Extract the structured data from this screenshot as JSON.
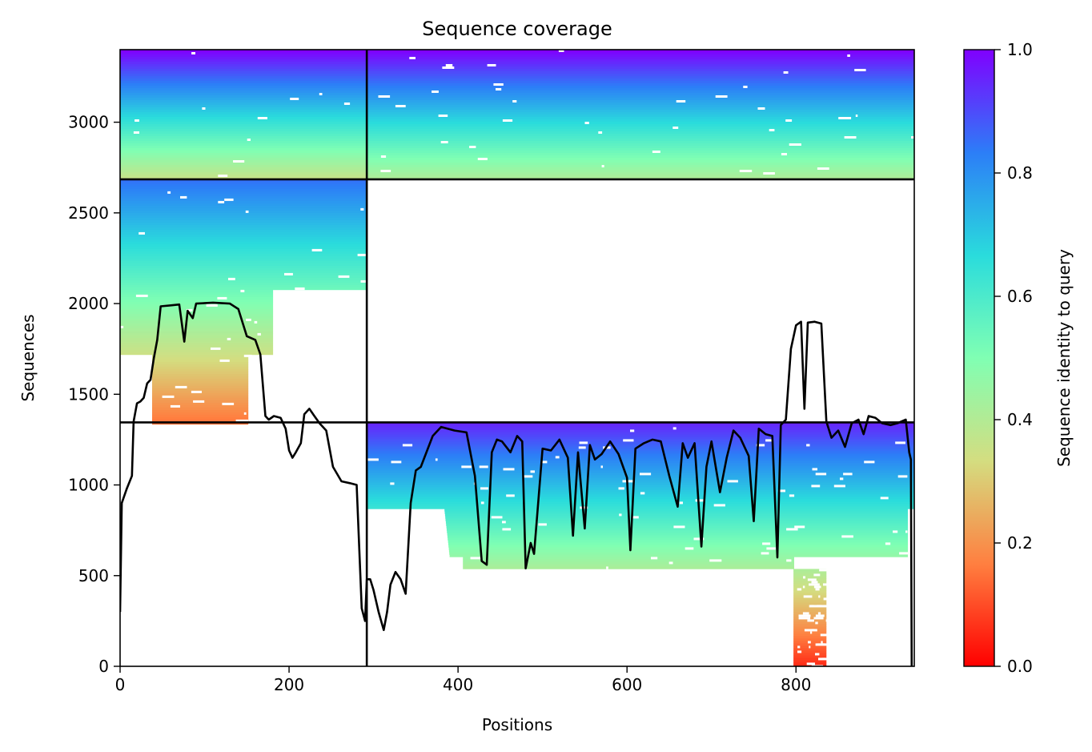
{
  "chart_data": {
    "type": "heatmap",
    "title": "Sequence coverage",
    "xlabel": "Positions",
    "ylabel": "Sequences",
    "xlim": [
      0,
      940
    ],
    "ylim": [
      0,
      3400
    ],
    "x_ticks": [
      0,
      200,
      400,
      600,
      800
    ],
    "y_ticks": [
      0,
      500,
      1000,
      1500,
      2000,
      2500,
      3000
    ],
    "colorbar": {
      "label": "Sequence identity to query",
      "range": [
        0,
        1
      ],
      "ticks": [
        0.0,
        0.2,
        0.4,
        0.6,
        0.8,
        1.0
      ],
      "tick_labels": [
        "0.0",
        "0.2",
        "0.4",
        "0.6",
        "0.8",
        "1.0"
      ],
      "colormap": "rainbow_r",
      "colors": [
        "#ff0000",
        "#ff7f40",
        "#d4dd80",
        "#80ffb3",
        "#2adcdc",
        "#2c7ef7",
        "#8000ff"
      ]
    },
    "chain_boundaries": {
      "x": [
        292
      ],
      "y": [
        1345,
        2685
      ]
    },
    "blocks": [
      {
        "x0": 0,
        "x1": 292,
        "y0": 2685,
        "y1": 3400,
        "identity_top": 1.0,
        "identity_bottom": 0.35,
        "sparsity": 0.12
      },
      {
        "x0": 292,
        "x1": 940,
        "y0": 2685,
        "y1": 3400,
        "identity_top": 1.0,
        "identity_bottom": 0.4,
        "sparsity": 0.22
      },
      {
        "x0": 0,
        "x1": 292,
        "y0": 1345,
        "y1": 2685,
        "identity_top": 0.85,
        "identity_bottom": 0.15,
        "sparsity": 0.15
      },
      {
        "x0": 292,
        "x1": 940,
        "y0": 0,
        "y1": 1345,
        "identity_top": 0.95,
        "identity_bottom": 0.05,
        "sparsity": 0.35
      }
    ],
    "coverage_line": {
      "x": [
        0,
        2,
        8,
        14,
        16,
        20,
        24,
        28,
        32,
        36,
        40,
        44,
        48,
        60,
        70,
        76,
        80,
        86,
        90,
        110,
        130,
        140,
        150,
        160,
        166,
        172,
        176,
        182,
        190,
        196,
        200,
        204,
        208,
        214,
        218,
        224,
        230,
        236,
        244,
        252,
        262,
        272,
        280,
        286,
        290,
        292,
        296,
        300,
        306,
        312,
        316,
        320,
        326,
        332,
        338,
        344,
        350,
        356,
        370,
        380,
        396,
        410,
        420,
        428,
        434,
        440,
        446,
        452,
        462,
        470,
        476,
        480,
        486,
        490,
        500,
        510,
        520,
        530,
        536,
        542,
        550,
        556,
        562,
        570,
        580,
        590,
        600,
        604,
        610,
        620,
        630,
        640,
        650,
        660,
        666,
        672,
        680,
        688,
        694,
        700,
        710,
        718,
        726,
        734,
        744,
        750,
        756,
        764,
        772,
        778,
        782,
        788,
        794,
        800,
        806,
        810,
        814,
        822,
        830,
        836,
        842,
        850,
        858,
        866,
        874,
        880,
        886,
        894,
        902,
        912,
        920,
        930,
        934,
        936,
        937
      ],
      "y": [
        300,
        900,
        980,
        1050,
        1350,
        1450,
        1460,
        1480,
        1560,
        1580,
        1700,
        1800,
        1985,
        1990,
        1995,
        1790,
        1960,
        1920,
        2000,
        2005,
        2000,
        1970,
        1820,
        1800,
        1720,
        1380,
        1360,
        1380,
        1370,
        1310,
        1190,
        1150,
        1180,
        1230,
        1390,
        1420,
        1380,
        1340,
        1300,
        1100,
        1020,
        1010,
        1000,
        320,
        250,
        480,
        480,
        420,
        300,
        200,
        300,
        450,
        520,
        480,
        400,
        900,
        1080,
        1100,
        1270,
        1320,
        1300,
        1290,
        1050,
        580,
        560,
        1180,
        1250,
        1240,
        1180,
        1270,
        1240,
        540,
        680,
        620,
        1200,
        1190,
        1250,
        1150,
        720,
        1180,
        760,
        1220,
        1140,
        1170,
        1240,
        1170,
        1040,
        640,
        1200,
        1230,
        1250,
        1240,
        1050,
        880,
        1230,
        1150,
        1230,
        660,
        1100,
        1240,
        960,
        1150,
        1300,
        1260,
        1160,
        800,
        1310,
        1280,
        1270,
        600,
        1330,
        1360,
        1750,
        1880,
        1900,
        1420,
        1895,
        1900,
        1890,
        1350,
        1260,
        1300,
        1210,
        1340,
        1360,
        1280,
        1380,
        1370,
        1340,
        1330,
        1340,
        1360,
        1180,
        1140,
        0
      ]
    }
  }
}
